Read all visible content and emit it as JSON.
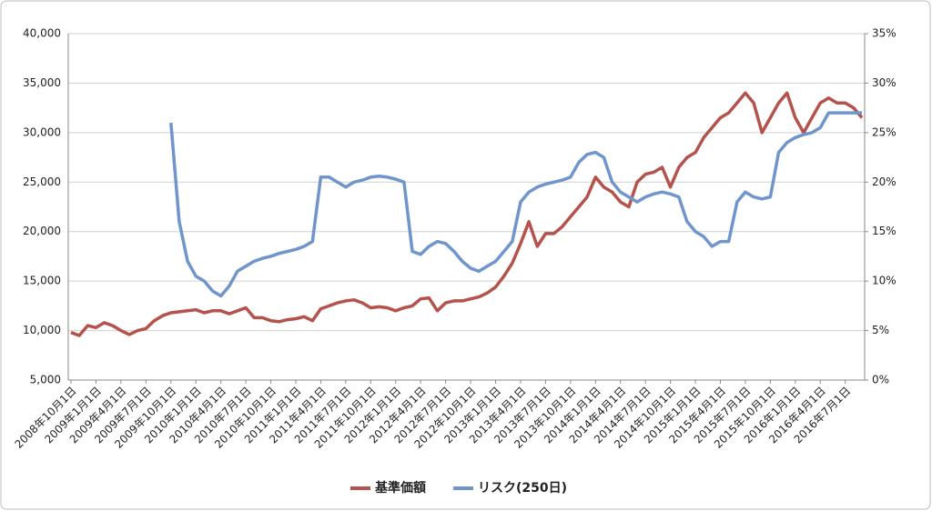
{
  "chart_data": {
    "type": "line",
    "categories": [
      "2008年10月1日",
      null,
      null,
      "2009年1月1日",
      null,
      null,
      "2009年4月1日",
      null,
      null,
      "2009年7月1日",
      null,
      null,
      "2009年10月1日",
      null,
      null,
      "2010年1月1日",
      null,
      null,
      "2010年4月1日",
      null,
      null,
      "2010年7月1日",
      null,
      null,
      "2010年10月1日",
      null,
      null,
      "2011年1月1日",
      null,
      null,
      "2011年4月1日",
      null,
      null,
      "2011年7月1日",
      null,
      null,
      "2011年10月1日",
      null,
      null,
      "2012年1月1日",
      null,
      null,
      "2012年4月1日",
      null,
      null,
      "2012年7月1日",
      null,
      null,
      "2012年10月1日",
      null,
      null,
      "2013年1月1日",
      null,
      null,
      "2013年4月1日",
      null,
      null,
      "2013年7月1日",
      null,
      null,
      "2013年10月1日",
      null,
      null,
      "2014年1月1日",
      null,
      null,
      "2014年4月1日",
      null,
      null,
      "2014年7月1日",
      null,
      null,
      "2014年10月1日",
      null,
      null,
      "2015年1月1日",
      null,
      null,
      "2015年4月1日",
      null,
      null,
      "2015年7月1日",
      null,
      null,
      "2015年10月1日",
      null,
      null,
      "2016年1月1日",
      null,
      null,
      "2016年4月1日",
      null,
      null,
      "2016年7月1日",
      null,
      null
    ],
    "series": [
      {
        "name": "基準価額",
        "color": "#b5524b",
        "axis": "y",
        "values": [
          9800,
          9500,
          10500,
          10300,
          10800,
          10500,
          10000,
          9600,
          10000,
          10200,
          11000,
          11500,
          11800,
          11900,
          12000,
          12100,
          11800,
          12000,
          12000,
          11700,
          12000,
          12300,
          11300,
          11300,
          11000,
          10900,
          11100,
          11200,
          11400,
          11000,
          12200,
          12500,
          12800,
          13000,
          13100,
          12800,
          12300,
          12400,
          12300,
          12000,
          12300,
          12500,
          13200,
          13300,
          12000,
          12800,
          13000,
          13000,
          13200,
          13400,
          13800,
          14400,
          15500,
          16800,
          18800,
          21000,
          18500,
          19800,
          19800,
          20500,
          21500,
          22500,
          23500,
          25500,
          24500,
          24000,
          23000,
          22500,
          25000,
          25800,
          26000,
          26500,
          24500,
          26500,
          27500,
          28000,
          29500,
          30500,
          31500,
          32000,
          33000,
          34000,
          33000,
          30000,
          31500,
          33000,
          34000,
          31500,
          30000,
          31500,
          33000,
          33500,
          33000,
          33000,
          32500,
          31500
        ]
      },
      {
        "name": "リスク(250日)",
        "color": "#6f95cc",
        "axis": "y2",
        "values": [
          null,
          null,
          null,
          null,
          null,
          null,
          null,
          null,
          null,
          null,
          null,
          null,
          26,
          16,
          12,
          10.5,
          10,
          9,
          8.5,
          9.5,
          11,
          11.5,
          12,
          12.3,
          12.5,
          12.8,
          13,
          13.2,
          13.5,
          14,
          20.5,
          20.5,
          20,
          19.5,
          20,
          20.2,
          20.5,
          20.6,
          20.5,
          20.3,
          20,
          13,
          12.7,
          13.5,
          14,
          13.8,
          13,
          12,
          11.3,
          11,
          11.5,
          12,
          13,
          14,
          18,
          19,
          19.5,
          19.8,
          20,
          20.2,
          20.5,
          22,
          22.8,
          23,
          22.5,
          20,
          19,
          18.5,
          18,
          18.5,
          18.8,
          19,
          18.8,
          18.5,
          16,
          15,
          14.5,
          13.5,
          14,
          14,
          18,
          19,
          18.5,
          18.3,
          18.5,
          23,
          24,
          24.5,
          24.8,
          25,
          25.5,
          27,
          27,
          27,
          27,
          27
        ]
      }
    ],
    "ylim": [
      5000,
      40000
    ],
    "yticks": [
      {
        "value": 5000,
        "label": "5,000"
      },
      {
        "value": 10000,
        "label": "10,000"
      },
      {
        "value": 15000,
        "label": "15,000"
      },
      {
        "value": 20000,
        "label": "20,000"
      },
      {
        "value": 25000,
        "label": "25,000"
      },
      {
        "value": 30000,
        "label": "30,000"
      },
      {
        "value": 35000,
        "label": "35,000"
      },
      {
        "value": 40000,
        "label": "40,000"
      }
    ],
    "y2lim": [
      0,
      35
    ],
    "y2ticks": [
      {
        "value": 0,
        "label": "0%"
      },
      {
        "value": 5,
        "label": "5%"
      },
      {
        "value": 10,
        "label": "10%"
      },
      {
        "value": 15,
        "label": "15%"
      },
      {
        "value": 20,
        "label": "20%"
      },
      {
        "value": 25,
        "label": "25%"
      },
      {
        "value": 30,
        "label": "30%"
      },
      {
        "value": 35,
        "label": "35%"
      }
    ],
    "grid": true,
    "legend": "bottom"
  }
}
